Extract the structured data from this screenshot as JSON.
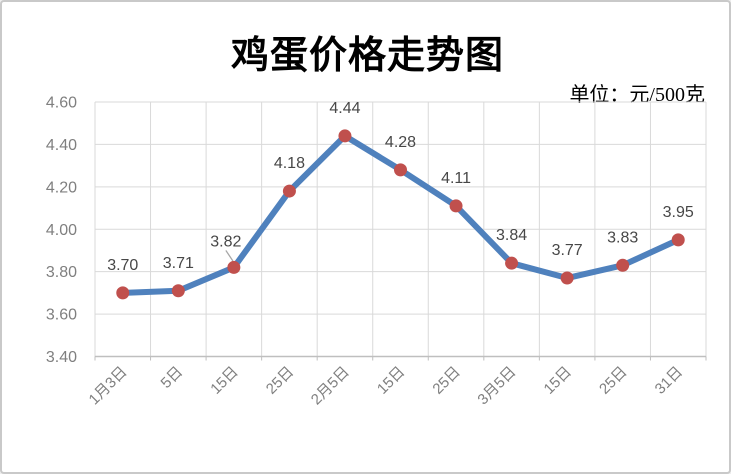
{
  "chart_data": {
    "type": "line",
    "title": "鸡蛋价格走势图",
    "unit": "单位：元/500克",
    "categories": [
      "1月3日",
      "5日",
      "15日",
      "25日",
      "2月5日",
      "15日",
      "25日",
      "3月5日",
      "15日",
      "25日",
      "31日"
    ],
    "values": [
      3.7,
      3.71,
      3.82,
      4.18,
      4.44,
      4.28,
      4.11,
      3.84,
      3.77,
      3.83,
      3.95
    ],
    "data_labels": [
      "3.70",
      "3.71",
      "3.82",
      "4.18",
      "4.44",
      "4.28",
      "4.11",
      "3.84",
      "3.77",
      "3.83",
      "3.95"
    ],
    "y_ticks": [
      "4.60",
      "4.40",
      "4.20",
      "4.00",
      "3.80",
      "3.60",
      "3.40"
    ],
    "ylim": [
      3.4,
      4.6
    ],
    "xlabel": "",
    "ylabel": "",
    "grid": true,
    "legend": "none",
    "leader_label_index": 2,
    "colors": {
      "line": "#4f81bd",
      "marker": "#c0504d",
      "grid": "#d9d9d9",
      "axis": "#bfbfbf",
      "axis_text": "#7f7f7f",
      "data_label_text": "#474747",
      "title_text": "#000000",
      "leader_line": "#a6a6a6"
    }
  }
}
